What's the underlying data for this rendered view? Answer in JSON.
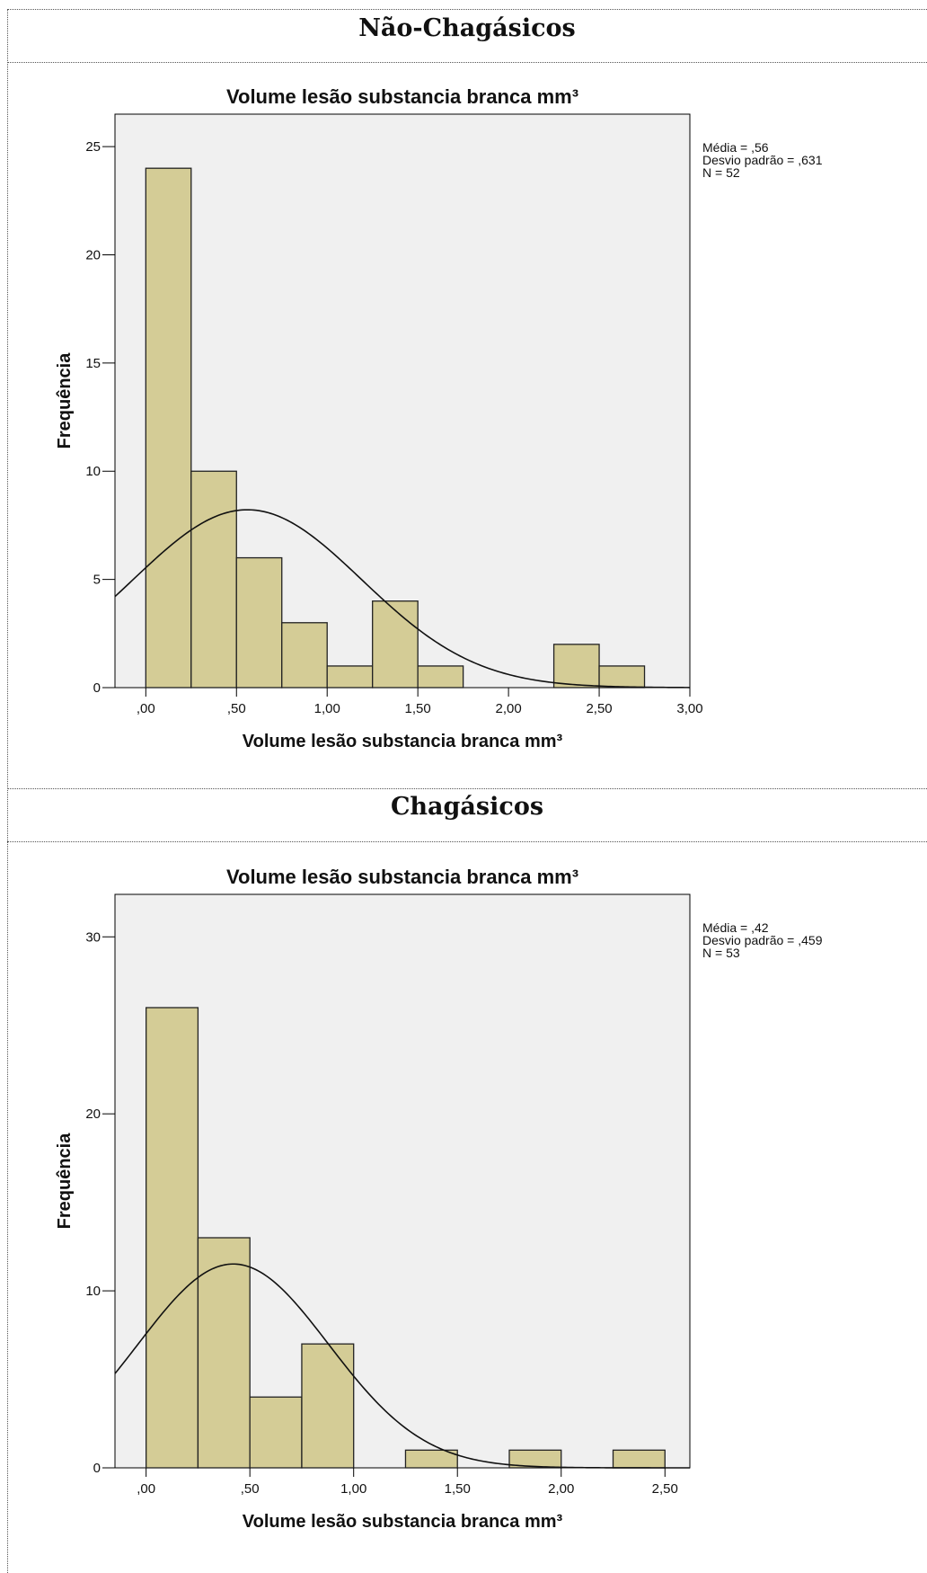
{
  "sections": [
    {
      "title": "Não-Chagásicos"
    },
    {
      "title": "Chagásicos"
    }
  ],
  "chart_data": [
    {
      "type": "bar",
      "title": "Volume lesão substancia branca mm³",
      "xlabel": "Volume lesão substancia branca mm³",
      "ylabel": "Frequência",
      "xlim": [
        -0.17,
        3.0
      ],
      "ylim": [
        0,
        26.5
      ],
      "x_ticks": [
        0.0,
        0.5,
        1.0,
        1.5,
        2.0,
        2.5,
        3.0
      ],
      "x_tick_labels": [
        ",00",
        ",50",
        "1,00",
        "1,50",
        "2,00",
        "2,50",
        "3,00"
      ],
      "y_ticks": [
        0,
        5,
        10,
        15,
        20,
        25
      ],
      "y_tick_labels": [
        "0",
        "5",
        "10",
        "15",
        "20",
        "25"
      ],
      "bin_width": 0.25,
      "bins": [
        {
          "start": 0.0,
          "value": 24
        },
        {
          "start": 0.25,
          "value": 10
        },
        {
          "start": 0.5,
          "value": 6
        },
        {
          "start": 0.75,
          "value": 3
        },
        {
          "start": 1.0,
          "value": 1
        },
        {
          "start": 1.25,
          "value": 4
        },
        {
          "start": 1.5,
          "value": 1
        },
        {
          "start": 2.25,
          "value": 2
        },
        {
          "start": 2.5,
          "value": 1
        }
      ],
      "normal_curve": {
        "mean": 0.56,
        "sd": 0.631,
        "n": 52
      },
      "stats": [
        "Média = ,56",
        "Desvio padrão = ,631",
        "N = 52"
      ],
      "bar_color": "#d4cc96",
      "plot_bg": "#f0f0f0"
    },
    {
      "type": "bar",
      "title": "Volume lesão substancia branca mm³",
      "xlabel": "Volume lesão substancia branca mm³",
      "ylabel": "Frequência",
      "xlim": [
        -0.15,
        2.62
      ],
      "ylim": [
        0,
        32.4
      ],
      "x_ticks": [
        0.0,
        0.5,
        1.0,
        1.5,
        2.0,
        2.5
      ],
      "x_tick_labels": [
        ",00",
        ",50",
        "1,00",
        "1,50",
        "2,00",
        "2,50"
      ],
      "y_ticks": [
        0,
        10,
        20,
        30
      ],
      "y_tick_labels": [
        "0",
        "10",
        "20",
        "30"
      ],
      "bin_width": 0.25,
      "bins": [
        {
          "start": 0.0,
          "value": 26
        },
        {
          "start": 0.25,
          "value": 13
        },
        {
          "start": 0.5,
          "value": 4
        },
        {
          "start": 0.75,
          "value": 7
        },
        {
          "start": 1.25,
          "value": 1
        },
        {
          "start": 1.75,
          "value": 1
        },
        {
          "start": 2.25,
          "value": 1
        }
      ],
      "normal_curve": {
        "mean": 0.42,
        "sd": 0.459,
        "n": 53
      },
      "stats": [
        "Média = ,42",
        "Desvio padrão = ,459",
        "N = 53"
      ],
      "bar_color": "#d4cc96",
      "plot_bg": "#f0f0f0"
    }
  ]
}
